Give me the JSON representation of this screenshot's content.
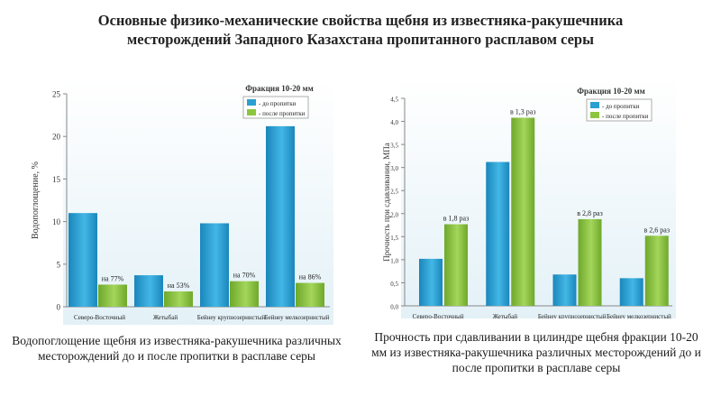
{
  "page": {
    "title_line1": "Основные физико-механические свойства щебня из известняка-ракушечника",
    "title_line2": "месторождений Западного Казахстана пропитанного расплавом серы"
  },
  "captions": {
    "left": "Водопоглощение  щебня из известняка-ракушечника различных месторождений до и после пропитки в расплаве серы",
    "right": "Прочность при сдавливании в цилиндре щебня фракции 10-20 мм из известняка-ракушечника различных месторождений до и после пропитки в расплаве серы"
  },
  "colors": {
    "before": "#2a9fd0",
    "after": "#8cc63f",
    "axis": "#888888",
    "bg_top": "#ffffff",
    "bg_bottom": "#e3f1f7"
  },
  "chart_data": [
    {
      "type": "bar",
      "title": "Фракция 10-20 мм",
      "ylabel": "Водопоглощение, %",
      "xlabel": "",
      "ylim": [
        0,
        25
      ],
      "yticks": [
        "0",
        "5",
        "10",
        "15",
        "20",
        "25"
      ],
      "ytick_values": [
        0,
        5,
        10,
        15,
        20,
        25
      ],
      "categories": [
        "Северо-Восточный",
        "Жетыбай",
        "Бейнеу крупнозернистый",
        "Бейнеу мелкозернистый"
      ],
      "series": [
        {
          "name": "- до пропитки",
          "values": [
            11.0,
            3.7,
            9.8,
            21.2
          ]
        },
        {
          "name": "- после пропитки",
          "values": [
            2.6,
            1.8,
            3.0,
            2.8
          ]
        }
      ],
      "annotations": [
        "на 77%",
        "на 53%",
        "на 70%",
        "на 86%"
      ],
      "legend": "top-right"
    },
    {
      "type": "bar",
      "title": "Фракция 10-20 мм",
      "ylabel": "Прочность при сдавливании, МПа",
      "xlabel": "",
      "ylim": [
        0,
        4.5
      ],
      "yticks": [
        "0,0",
        "0,5",
        "1,0",
        "1,5",
        "2,0",
        "2,5",
        "3,0",
        "3,5",
        "4,0",
        "4,5"
      ],
      "ytick_values": [
        0,
        0.5,
        1.0,
        1.5,
        2.0,
        2.5,
        3.0,
        3.5,
        4.0,
        4.5
      ],
      "categories": [
        "Северо-Восточный",
        "Жетыбай",
        "Бейнеу крупнозернистый",
        "Бейнеу мелкозернистый"
      ],
      "series": [
        {
          "name": "- до пропитки",
          "values": [
            1.02,
            3.12,
            0.68,
            0.6
          ]
        },
        {
          "name": "- после пропитки",
          "values": [
            1.77,
            4.08,
            1.88,
            1.52
          ]
        }
      ],
      "annotations": [
        "в 1,8 раз",
        "в 1,3 раз",
        "в 2,8 раз",
        "в 2,6 раз"
      ],
      "legend": "top-right"
    }
  ]
}
